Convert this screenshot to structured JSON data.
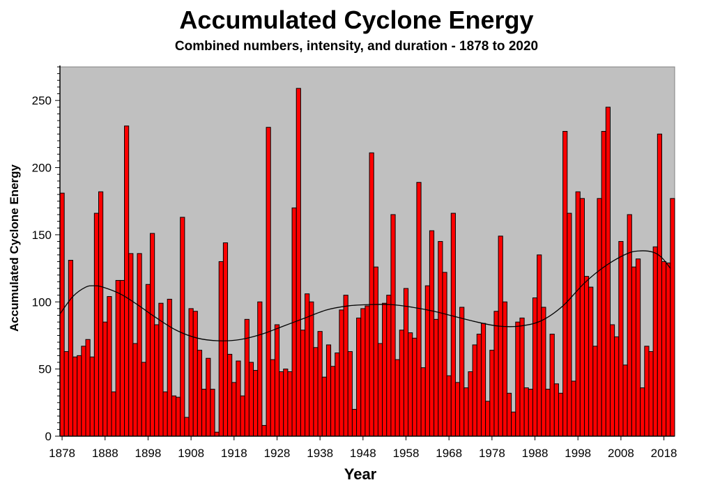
{
  "chart_data": {
    "type": "bar",
    "title": "Accumulated Cyclone Energy",
    "subtitle": "Combined numbers, intensity, and duration - 1878 to 2020",
    "xlabel": "Year",
    "ylabel": "Accumulated Cyclone Energy",
    "x_start": 1878,
    "xlim": [
      1878,
      2021
    ],
    "ylim": [
      0,
      275
    ],
    "yticks": [
      0,
      50,
      100,
      150,
      200,
      250
    ],
    "xticks": [
      1878,
      1888,
      1898,
      1908,
      1918,
      1928,
      1938,
      1948,
      1958,
      1968,
      1978,
      1988,
      1998,
      2008,
      2018
    ],
    "grid": false,
    "background_color": "#c0c0c0",
    "bar_color": "#ff0000",
    "values": [
      181,
      63,
      131,
      59,
      60,
      67,
      72,
      59,
      166,
      182,
      85,
      104,
      33,
      116,
      116,
      231,
      136,
      69,
      136,
      55,
      113,
      151,
      83,
      99,
      33,
      102,
      30,
      29,
      163,
      14,
      95,
      93,
      64,
      35,
      58,
      35,
      3,
      130,
      144,
      61,
      40,
      56,
      30,
      87,
      55,
      49,
      100,
      8,
      230,
      57,
      83,
      48,
      50,
      48,
      170,
      259,
      79,
      106,
      100,
      66,
      78,
      44,
      68,
      52,
      62,
      94,
      105,
      63,
      20,
      88,
      95,
      97,
      211,
      126,
      69,
      99,
      105,
      165,
      57,
      79,
      110,
      77,
      73,
      189,
      51,
      112,
      153,
      87,
      145,
      122,
      45,
      166,
      40,
      96,
      36,
      48,
      68,
      76,
      84,
      26,
      64,
      93,
      149,
      100,
      32,
      18,
      85,
      88,
      36,
      35,
      103,
      135,
      96,
      35,
      76,
      39,
      32,
      227,
      166,
      41,
      182,
      177,
      119,
      111,
      67,
      177,
      227,
      245,
      83,
      74,
      145,
      53,
      165,
      126,
      132,
      36,
      67,
      63,
      141,
      225,
      130,
      129,
      177
    ],
    "trend": {
      "x": [
        1878,
        1881,
        1884,
        1886,
        1888,
        1892,
        1896,
        1900,
        1905,
        1910,
        1915,
        1920,
        1925,
        1930,
        1935,
        1940,
        1945,
        1950,
        1955,
        1960,
        1965,
        1970,
        1975,
        1980,
        1985,
        1990,
        1995,
        2000,
        2005,
        2010,
        2013,
        2016,
        2018,
        2020
      ],
      "y": [
        91,
        104,
        111,
        112,
        111,
        106,
        98,
        89,
        79,
        73,
        71,
        72,
        76,
        82,
        88,
        94,
        97,
        98,
        98,
        96,
        93,
        89,
        85,
        82,
        82,
        86,
        97,
        114,
        127,
        136,
        138,
        137,
        133,
        125
      ]
    }
  }
}
